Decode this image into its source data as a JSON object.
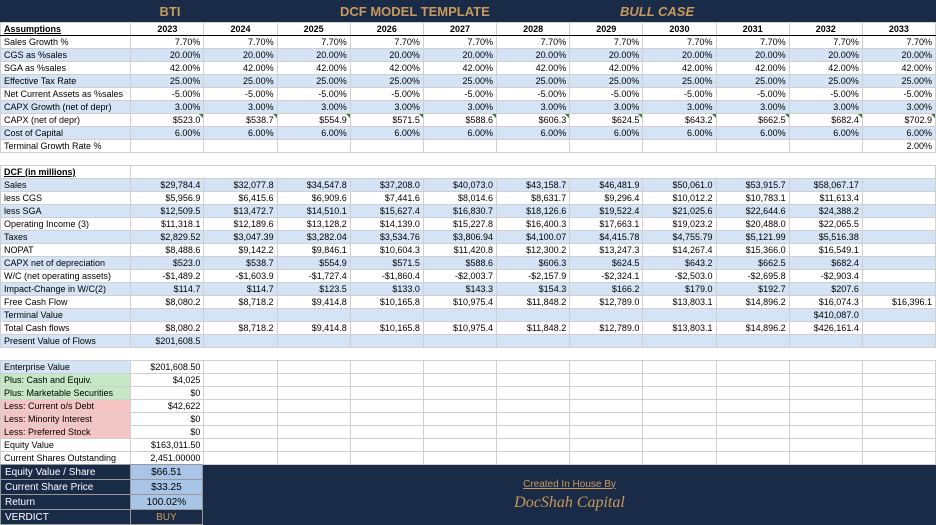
{
  "header": {
    "ticker": "BTI",
    "title": "DCF MODEL TEMPLATE",
    "scenario": "BULL CASE"
  },
  "years": [
    "2023",
    "2024",
    "2025",
    "2026",
    "2027",
    "2028",
    "2029",
    "2030",
    "2031",
    "2032",
    "2033"
  ],
  "assumptions": [
    {
      "label": "Sales Growth %",
      "vals": [
        "7.70%",
        "7.70%",
        "7.70%",
        "7.70%",
        "7.70%",
        "7.70%",
        "7.70%",
        "7.70%",
        "7.70%",
        "7.70%",
        "7.70%"
      ],
      "cls": ""
    },
    {
      "label": "CGS as %sales",
      "vals": [
        "20.00%",
        "20.00%",
        "20.00%",
        "20.00%",
        "20.00%",
        "20.00%",
        "20.00%",
        "20.00%",
        "20.00%",
        "20.00%",
        "20.00%"
      ],
      "cls": "blue-lt"
    },
    {
      "label": "SGA as %sales",
      "vals": [
        "42.00%",
        "42.00%",
        "42.00%",
        "42.00%",
        "42.00%",
        "42.00%",
        "42.00%",
        "42.00%",
        "42.00%",
        "42.00%",
        "42.00%"
      ],
      "cls": ""
    },
    {
      "label": "Effective Tax Rate",
      "vals": [
        "25.00%",
        "25.00%",
        "25.00%",
        "25.00%",
        "25.00%",
        "25.00%",
        "25.00%",
        "25.00%",
        "25.00%",
        "25.00%",
        "25.00%"
      ],
      "cls": "blue-lt"
    },
    {
      "label": "Net Current Assets as %sales",
      "vals": [
        "-5.00%",
        "-5.00%",
        "-5.00%",
        "-5.00%",
        "-5.00%",
        "-5.00%",
        "-5.00%",
        "-5.00%",
        "-5.00%",
        "-5.00%",
        "-5.00%"
      ],
      "cls": ""
    },
    {
      "label": "CAPX Growth (net of depr)",
      "vals": [
        "3.00%",
        "3.00%",
        "3.00%",
        "3.00%",
        "3.00%",
        "3.00%",
        "3.00%",
        "3.00%",
        "3.00%",
        "3.00%",
        "3.00%"
      ],
      "cls": "blue-lt"
    },
    {
      "label": "CAPX (net of depr)",
      "vals": [
        "$523.0",
        "$538.7",
        "$554.9",
        "$571.5",
        "$588.6",
        "$606.3",
        "$624.5",
        "$643.2",
        "$662.5",
        "$682.4",
        "$702.9"
      ],
      "cls": "",
      "mark": true
    },
    {
      "label": "Cost of Capital",
      "vals": [
        "6.00%",
        "6.00%",
        "6.00%",
        "6.00%",
        "6.00%",
        "6.00%",
        "6.00%",
        "6.00%",
        "6.00%",
        "6.00%",
        "6.00%"
      ],
      "cls": "blue-lt"
    },
    {
      "label": "Terminal Growth Rate %",
      "vals": [
        "",
        "",
        "",
        "",
        "",
        "",
        "",
        "",
        "",
        "",
        "2.00%"
      ],
      "cls": ""
    }
  ],
  "dcf_label": "DCF (in millions)",
  "dcf": [
    {
      "label": "Sales",
      "vals": [
        "$29,784.4",
        "$32,077.8",
        "$34,547.8",
        "$37,208.0",
        "$40,073.0",
        "$43,158.7",
        "$46,481.9",
        "$50,061.0",
        "$53,915.7",
        "$58,067.17",
        ""
      ],
      "cls": "blue-lt"
    },
    {
      "label": "less CGS",
      "vals": [
        "$5,956.9",
        "$6,415.6",
        "$6,909.6",
        "$7,441.6",
        "$8,014.6",
        "$8,631.7",
        "$9,296.4",
        "$10,012.2",
        "$10,783.1",
        "$11,613.4",
        ""
      ],
      "cls": ""
    },
    {
      "label": "less SGA",
      "vals": [
        "$12,509.5",
        "$13,472.7",
        "$14,510.1",
        "$15,627.4",
        "$16,830.7",
        "$18,126.6",
        "$19,522.4",
        "$21,025.6",
        "$22,644.6",
        "$24,388.2",
        ""
      ],
      "cls": "blue-lt"
    },
    {
      "label": "Operating Income (3)",
      "vals": [
        "$11,318.1",
        "$12,189.6",
        "$13,128.2",
        "$14,139.0",
        "$15,227.8",
        "$16,400.3",
        "$17,663.1",
        "$19,023.2",
        "$20,488.0",
        "$22,065.5",
        ""
      ],
      "cls": ""
    },
    {
      "label": "Taxes",
      "vals": [
        "$2,829.52",
        "$3,047.39",
        "$3,282.04",
        "$3,534.76",
        "$3,806.94",
        "$4,100.07",
        "$4,415.78",
        "$4,755.79",
        "$5,121.99",
        "$5,516.38",
        ""
      ],
      "cls": "blue-lt"
    },
    {
      "label": "NOPAT",
      "vals": [
        "$8,488.6",
        "$9,142.2",
        "$9,846.1",
        "$10,604.3",
        "$11,420.8",
        "$12,300.2",
        "$13,247.3",
        "$14,267.4",
        "$15,366.0",
        "$16,549.1",
        ""
      ],
      "cls": ""
    },
    {
      "label": "CAPX net of depreciation",
      "vals": [
        "$523.0",
        "$538.7",
        "$554.9",
        "$571.5",
        "$588.6",
        "$606.3",
        "$624.5",
        "$643.2",
        "$662.5",
        "$682.4",
        ""
      ],
      "cls": "blue-lt"
    },
    {
      "label": "W/C (net operating assets)",
      "vals": [
        "-$1,489.2",
        "-$1,603.9",
        "-$1,727.4",
        "-$1,860.4",
        "-$2,003.7",
        "-$2,157.9",
        "-$2,324.1",
        "-$2,503.0",
        "-$2,695.8",
        "-$2,903.4",
        ""
      ],
      "cls": ""
    },
    {
      "label": "Impact-Change in W/C(2)",
      "vals": [
        "$114.7",
        "$114.7",
        "$123.5",
        "$133.0",
        "$143.3",
        "$154.3",
        "$166.2",
        "$179.0",
        "$192.7",
        "$207.6",
        ""
      ],
      "cls": "blue-lt"
    },
    {
      "label": "Free Cash Flow",
      "vals": [
        "$8,080.2",
        "$8,718.2",
        "$9,414.8",
        "$10,165.8",
        "$10,975.4",
        "$11,848.2",
        "$12,789.0",
        "$13,803.1",
        "$14,896.2",
        "$16,074.3",
        "$16,396.1"
      ],
      "cls": ""
    },
    {
      "label": "Terminal Value",
      "vals": [
        "",
        "",
        "",
        "",
        "",
        "",
        "",
        "",
        "",
        "$410,087.0",
        ""
      ],
      "cls": "blue-lt"
    },
    {
      "label": "Total Cash flows",
      "vals": [
        "$8,080.2",
        "$8,718.2",
        "$9,414.8",
        "$10,165.8",
        "$10,975.4",
        "$11,848.2",
        "$12,789.0",
        "$13,803.1",
        "$14,896.2",
        "$426,161.4",
        ""
      ],
      "cls": ""
    },
    {
      "label": "Present Value of Flows",
      "vals": [
        "$201,608.5",
        "",
        "",
        "",
        "",
        "",
        "",
        "",
        "",
        "",
        ""
      ],
      "cls": "blue-lt"
    }
  ],
  "valuation": [
    {
      "label": "Enterprise Value",
      "val": "$201,608.50",
      "cls": "blue-lt"
    },
    {
      "label": "Plus: Cash and Equiv.",
      "val": "$4,025",
      "cls": "green"
    },
    {
      "label": "Plus: Marketable Securities",
      "val": "$0",
      "cls": "green"
    },
    {
      "label": "Less: Current o/s Debt",
      "val": "$42,622",
      "cls": "red"
    },
    {
      "label": "Less: Minority Interest",
      "val": "$0",
      "cls": "red"
    },
    {
      "label": "Less: Preferred Stock",
      "val": "$0",
      "cls": "red"
    },
    {
      "label": "Equity Value",
      "val": "$163,011.50",
      "cls": ""
    },
    {
      "label": "Current Shares Outstanding",
      "val": "2,451.00000",
      "cls": ""
    }
  ],
  "footer_rows": [
    {
      "label": "Equity Value / Share",
      "val": "$66.51"
    },
    {
      "label": "Current Share Price",
      "val": "$33.25"
    },
    {
      "label": "Return",
      "val": "100.02%"
    },
    {
      "label": "VERDICT",
      "val": "BUY",
      "gold": true
    }
  ],
  "footer_credit": {
    "line1": "Created In House By",
    "line2": "DocShah Capital"
  }
}
